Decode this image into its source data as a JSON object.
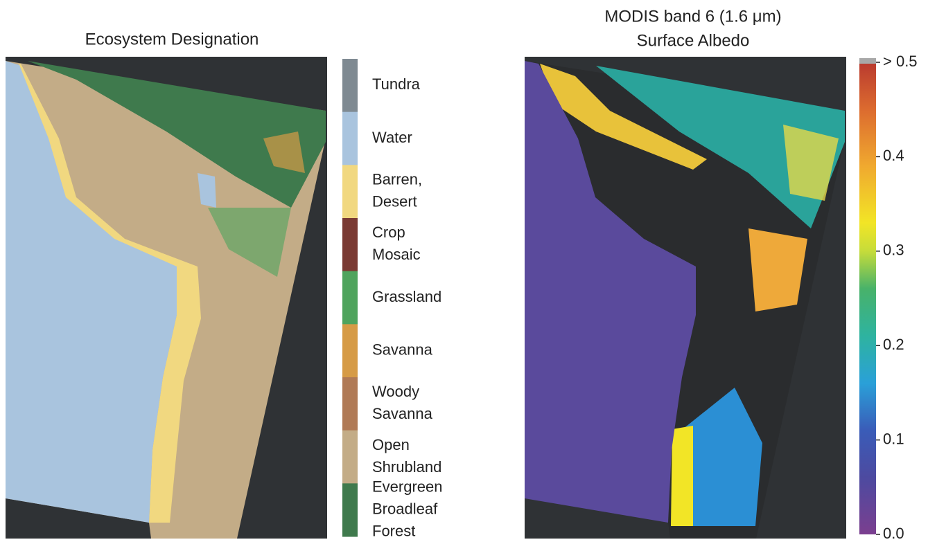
{
  "left_panel": {
    "title": "Ecosystem Designation",
    "legend": [
      {
        "label": [
          "Tundra"
        ],
        "color": "#7f8a92"
      },
      {
        "label": [
          "Water"
        ],
        "color": "#a9c4de"
      },
      {
        "label": [
          "Barren,",
          "Desert"
        ],
        "color": "#f1d880"
      },
      {
        "label": [
          "Crop",
          "Mosaic"
        ],
        "color": "#7a3a33"
      },
      {
        "label": [
          "Grassland"
        ],
        "color": "#4fa45d"
      },
      {
        "label": [
          "Savanna"
        ],
        "color": "#d69b46"
      },
      {
        "label": [
          "Woody",
          "Savanna"
        ],
        "color": "#b07a56"
      },
      {
        "label": [
          "Open",
          "Shrubland"
        ],
        "color": "#c3ac87"
      },
      {
        "label": [
          "Evergreen",
          "Broadleaf",
          "Forest"
        ],
        "color": "#3f7a4d"
      }
    ]
  },
  "right_panel": {
    "title": [
      "MODIS band 6 (1.6 μm)",
      "Surface Albedo"
    ],
    "colorbar": {
      "range": [
        0,
        0.5
      ],
      "ticks": [
        {
          "value": 0,
          "label": "0.0"
        },
        0.1,
        0.2,
        0.3,
        0.4,
        {
          "value": 0.5,
          "label": "> 0.5"
        }
      ]
    }
  }
}
